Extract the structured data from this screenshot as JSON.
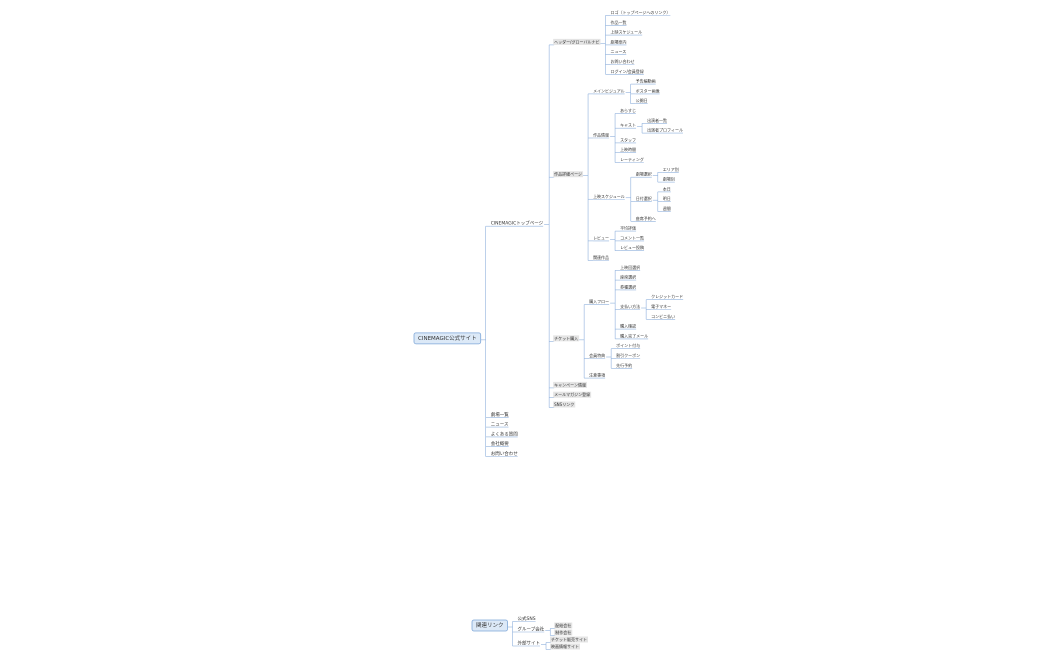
{
  "tree": {
    "label": "CINEMAGIC公式サイト",
    "children": [
      {
        "label": "CINEMAGICトップページ",
        "children": [
          {
            "label": "ヘッダー/グローバルナビ",
            "children": [
              {
                "label": "ロゴ（トップページへのリンク）"
              },
              {
                "label": "作品一覧"
              },
              {
                "label": "上映スケジュール"
              },
              {
                "label": "劇場案内"
              },
              {
                "label": "ニュース"
              },
              {
                "label": "お問い合わせ"
              },
              {
                "label": "ログイン/会員登録"
              }
            ]
          },
          {
            "label": "作品詳細ページ",
            "children": [
              {
                "label": "メインビジュアル",
                "children": [
                  {
                    "label": "予告編動画"
                  },
                  {
                    "label": "ポスター画像"
                  },
                  {
                    "label": "公開日"
                  }
                ]
              },
              {
                "label": "作品情報",
                "children": [
                  {
                    "label": "あらすじ"
                  },
                  {
                    "label": "キャスト",
                    "children": [
                      {
                        "label": "出演者一覧"
                      },
                      {
                        "label": "出演者プロフィール"
                      }
                    ]
                  },
                  {
                    "label": "スタッフ"
                  },
                  {
                    "label": "上映時間"
                  },
                  {
                    "label": "レーティング"
                  }
                ]
              },
              {
                "label": "上映スケジュール",
                "children": [
                  {
                    "label": "劇場選択",
                    "children": [
                      {
                        "label": "エリア別"
                      },
                      {
                        "label": "劇場別"
                      }
                    ]
                  },
                  {
                    "label": "日付選択",
                    "children": [
                      {
                        "label": "本日"
                      },
                      {
                        "label": "明日"
                      },
                      {
                        "label": "週間"
                      }
                    ]
                  },
                  {
                    "label": "座席予約へ"
                  }
                ]
              },
              {
                "label": "レビュー",
                "children": [
                  {
                    "label": "平均評価"
                  },
                  {
                    "label": "コメント一覧"
                  },
                  {
                    "label": "レビュー投稿"
                  }
                ]
              },
              {
                "label": "関連作品"
              }
            ]
          },
          {
            "label": "チケット購入",
            "children": [
              {
                "label": "購入フロー",
                "children": [
                  {
                    "label": "上映回選択"
                  },
                  {
                    "label": "座席選択"
                  },
                  {
                    "label": "券種選択"
                  },
                  {
                    "label": "支払い方法",
                    "children": [
                      {
                        "label": "クレジットカード"
                      },
                      {
                        "label": "電子マネー"
                      },
                      {
                        "label": "コンビニ払い"
                      }
                    ]
                  },
                  {
                    "label": "購入確認"
                  },
                  {
                    "label": "購入完了メール"
                  }
                ]
              },
              {
                "label": "会員特典",
                "children": [
                  {
                    "label": "ポイント付与"
                  },
                  {
                    "label": "割引クーポン"
                  },
                  {
                    "label": "先行予約"
                  }
                ]
              },
              {
                "label": "注意事項"
              }
            ]
          },
          {
            "label": "キャンペーン情報"
          },
          {
            "label": "メールマガジン登録"
          },
          {
            "label": "SNSリンク"
          }
        ]
      },
      {
        "label": "劇場一覧"
      },
      {
        "label": "ニュース"
      },
      {
        "label": "よくある質問"
      },
      {
        "label": "会社概要"
      },
      {
        "label": "お問い合わせ"
      }
    ]
  },
  "related": {
    "label": "関連リンク",
    "children": [
      {
        "label": "公式SNS"
      },
      {
        "label": "グループ会社",
        "children": [
          {
            "label": "配給会社"
          },
          {
            "label": "制作会社"
          }
        ]
      },
      {
        "label": "外部サイト",
        "children": [
          {
            "label": "チケット販売サイト"
          },
          {
            "label": "映画情報サイト"
          }
        ]
      }
    ]
  }
}
